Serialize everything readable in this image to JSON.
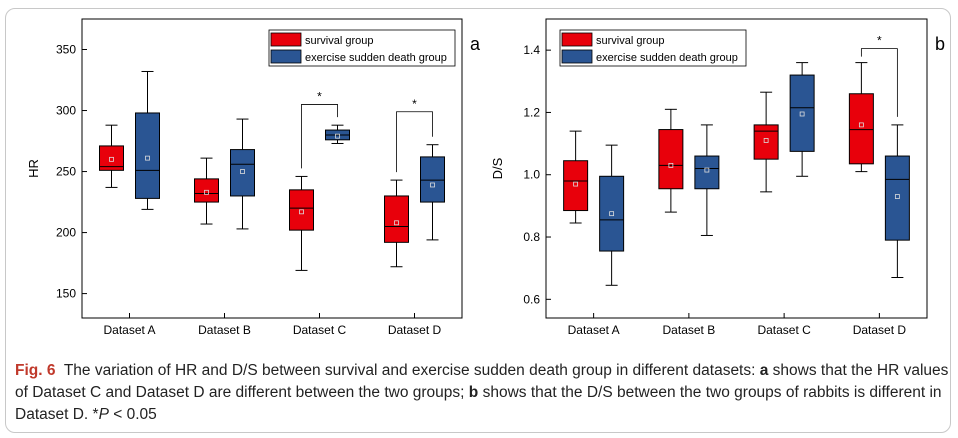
{
  "colors": {
    "survival": "#e8000b",
    "death": "#2a5593",
    "axis": "#000000"
  },
  "chart_data": [
    {
      "type": "box",
      "panel_label": "a",
      "ylabel": "HR",
      "ylim": [
        130,
        375
      ],
      "yticks": [
        150,
        200,
        250,
        300,
        350
      ],
      "categories": [
        "Dataset A",
        "Dataset B",
        "Dataset C",
        "Dataset D"
      ],
      "legend_position": "top-right",
      "series": [
        {
          "name": "survival group",
          "color": "#e8000b",
          "boxes": [
            {
              "min": 237,
              "q1": 251,
              "median": 254,
              "q3": 271,
              "max": 288,
              "mean": 260
            },
            {
              "min": 207,
              "q1": 225,
              "median": 232,
              "q3": 244,
              "max": 261,
              "mean": 233
            },
            {
              "min": 169,
              "q1": 202,
              "median": 220,
              "q3": 235,
              "max": 246,
              "mean": 217
            },
            {
              "min": 172,
              "q1": 192,
              "median": 205,
              "q3": 230,
              "max": 243,
              "mean": 208
            }
          ]
        },
        {
          "name": "exercise sudden death group",
          "color": "#2a5593",
          "boxes": [
            {
              "min": 219,
              "q1": 228,
              "median": 251,
              "q3": 298,
              "max": 332,
              "mean": 261
            },
            {
              "min": 203,
              "q1": 230,
              "median": 256,
              "q3": 268,
              "max": 293,
              "mean": 250
            },
            {
              "min": 273,
              "q1": 276,
              "median": 280,
              "q3": 284,
              "max": 288,
              "mean": 279
            },
            {
              "min": 194,
              "q1": 225,
              "median": 243,
              "q3": 262,
              "max": 272,
              "mean": 239
            }
          ]
        }
      ],
      "significance": [
        {
          "category_index": 2,
          "y": 305,
          "label": "*"
        },
        {
          "category_index": 3,
          "y": 299,
          "label": "*"
        }
      ]
    },
    {
      "type": "box",
      "panel_label": "b",
      "ylabel": "D/S",
      "ylim": [
        0.54,
        1.5
      ],
      "yticks": [
        0.6,
        0.8,
        1.0,
        1.2,
        1.4
      ],
      "categories": [
        "Dataset A",
        "Dataset B",
        "Dataset C",
        "Dataset D"
      ],
      "legend_position": "top-left",
      "series": [
        {
          "name": "survival group",
          "color": "#e8000b",
          "boxes": [
            {
              "min": 0.845,
              "q1": 0.885,
              "median": 0.98,
              "q3": 1.045,
              "max": 1.14,
              "mean": 0.97
            },
            {
              "min": 0.88,
              "q1": 0.955,
              "median": 1.03,
              "q3": 1.145,
              "max": 1.21,
              "mean": 1.03
            },
            {
              "min": 0.945,
              "q1": 1.05,
              "median": 1.14,
              "q3": 1.16,
              "max": 1.265,
              "mean": 1.11
            },
            {
              "min": 1.01,
              "q1": 1.035,
              "median": 1.145,
              "q3": 1.26,
              "max": 1.36,
              "mean": 1.16
            }
          ]
        },
        {
          "name": "exercise sudden death group",
          "color": "#2a5593",
          "boxes": [
            {
              "min": 0.645,
              "q1": 0.755,
              "median": 0.855,
              "q3": 0.995,
              "max": 1.095,
              "mean": 0.875
            },
            {
              "min": 0.805,
              "q1": 0.955,
              "median": 1.02,
              "q3": 1.06,
              "max": 1.16,
              "mean": 1.015
            },
            {
              "min": 0.995,
              "q1": 1.075,
              "median": 1.215,
              "q3": 1.32,
              "max": 1.36,
              "mean": 1.195
            },
            {
              "min": 0.67,
              "q1": 0.79,
              "median": 0.985,
              "q3": 1.06,
              "max": 1.16,
              "mean": 0.93
            }
          ]
        }
      ],
      "significance": [
        {
          "category_index": 3,
          "y": 1.405,
          "label": "*"
        }
      ]
    }
  ],
  "caption": {
    "fig_label": "Fig. 6",
    "part1": "The variation of HR and D/S between survival and exercise sudden death group in different datasets: ",
    "a_label": "a",
    "part2": " shows that the HR values of Dataset C and Dataset D are different between the two groups; ",
    "b_label": "b",
    "part3": " shows that the D/S between the two groups of rabbits is different in Dataset D. *",
    "p_italic": "P",
    "part4": " < 0.05"
  }
}
